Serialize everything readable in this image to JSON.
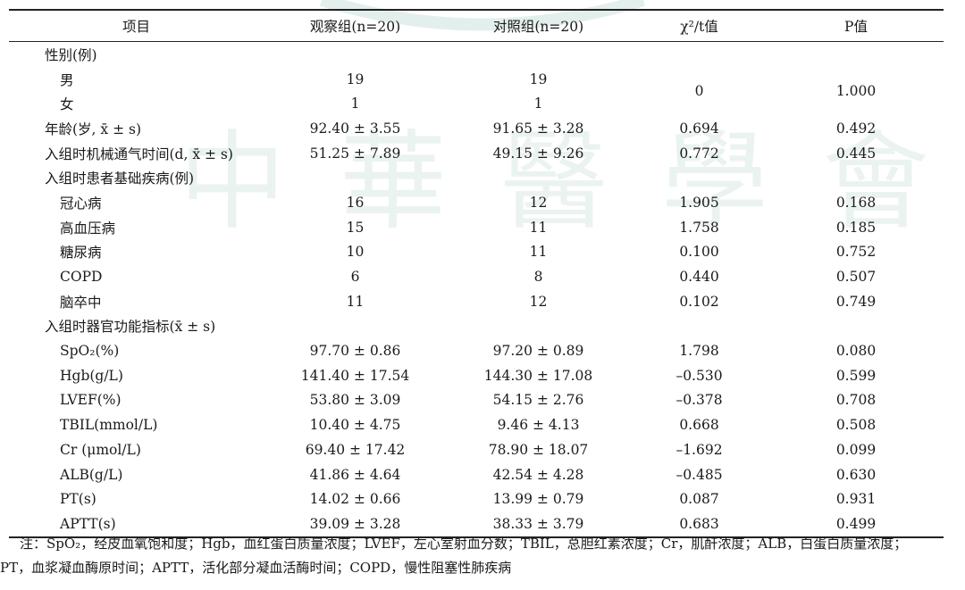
{
  "table": {
    "headers": [
      "项目",
      "观察组(n=20)",
      "对照组(n=20)",
      "χ²/t值",
      "P值"
    ],
    "sections": [
      {
        "label": "性别(例)",
        "rows": [
          {
            "label": "男",
            "obs": "19",
            "ctrl": "19"
          },
          {
            "label": "女",
            "obs": "1",
            "ctrl": "1"
          }
        ],
        "merged_stat": "0",
        "merged_p": "1.000"
      }
    ],
    "age": {
      "label": "年龄(岁, x̄ ± s)",
      "obs": "92.40 ± 3.55",
      "ctrl": "91.65 ± 3.28",
      "stat": "0.694",
      "p": "0.492"
    },
    "ventilation": {
      "label": "入组时机械通气时间(d, x̄ ± s)",
      "obs": "51.25 ± 7.89",
      "ctrl": "49.15 ± 9.26",
      "stat": "0.772",
      "p": "0.445"
    },
    "disease_header": "入组时患者基础疾病(例)",
    "diseases": [
      {
        "label": "冠心病",
        "obs": "16",
        "ctrl": "12",
        "stat": "1.905",
        "p": "0.168"
      },
      {
        "label": "高血压病",
        "obs": "15",
        "ctrl": "11",
        "stat": "1.758",
        "p": "0.185"
      },
      {
        "label": "糖尿病",
        "obs": "10",
        "ctrl": "11",
        "stat": "0.100",
        "p": "0.752"
      },
      {
        "label": "COPD",
        "obs": "6",
        "ctrl": "8",
        "stat": "0.440",
        "p": "0.507"
      },
      {
        "label": "脑卒中",
        "obs": "11",
        "ctrl": "12",
        "stat": "0.102",
        "p": "0.749"
      }
    ],
    "organ_header": "入组时器官功能指标(x̄ ± s)",
    "organs": [
      {
        "label": "SpO₂(%)",
        "obs": "97.70 ± 0.86",
        "ctrl": "97.20 ± 0.89",
        "stat": "1.798",
        "p": "0.080"
      },
      {
        "label": "Hgb(g/L)",
        "obs": "141.40 ± 17.54",
        "ctrl": "144.30 ± 17.08",
        "stat": "–0.530",
        "p": "0.599"
      },
      {
        "label": "LVEF(%)",
        "obs": "53.80 ± 3.09",
        "ctrl": "54.15 ± 2.76",
        "stat": "–0.378",
        "p": "0.708"
      },
      {
        "label": "TBIL(mmol/L)",
        "obs": "10.40 ± 4.75",
        "ctrl": "9.46 ± 4.13",
        "stat": "0.668",
        "p": "0.508"
      },
      {
        "label": "Cr (μmol/L)",
        "obs": "69.40 ± 17.42",
        "ctrl": "78.90 ± 18.07",
        "stat": "–1.692",
        "p": "0.099"
      },
      {
        "label": "ALB(g/L)",
        "obs": "41.86 ± 4.64",
        "ctrl": "42.54 ± 4.28",
        "stat": "–0.485",
        "p": "0.630"
      },
      {
        "label": "PT(s)",
        "obs": "14.02 ± 0.66",
        "ctrl": "13.99 ± 0.79",
        "stat": "0.087",
        "p": "0.931"
      },
      {
        "label": "APTT(s)",
        "obs": "39.09 ± 3.28",
        "ctrl": "38.33 ± 3.79",
        "stat": "0.683",
        "p": "0.499"
      }
    ]
  },
  "note": {
    "line1": "注：SpO₂，经皮血氧饱和度；Hgb，血红蛋白质量浓度；LVEF，左心室射血分数；TBIL，总胆红素浓度；Cr，肌酐浓度；ALB，白蛋白质量浓度；",
    "line2": "PT，血浆凝血酶原时间；APTT，活化部分凝血活酶时间；COPD，慢性阻塞性肺疾病"
  },
  "watermark": {
    "text": "中華醫學會",
    "color": "#dcebe7"
  }
}
